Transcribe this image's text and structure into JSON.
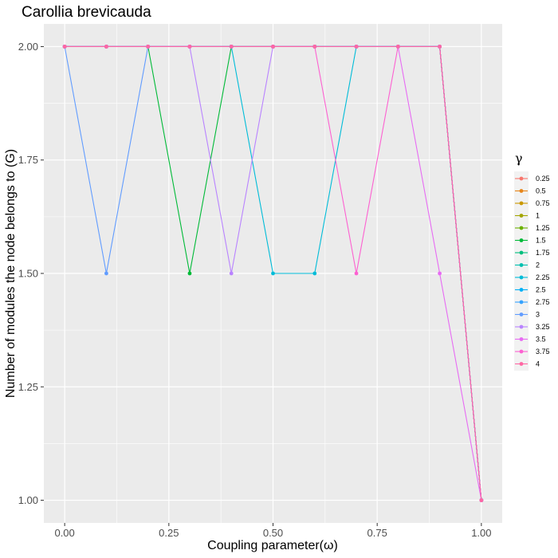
{
  "chart_data": {
    "type": "line",
    "title": "Carollia brevicauda",
    "xlabel": "Coupling parameter(ω)",
    "ylabel": "Number of modules the node belongs to (G)",
    "xlim": [
      -0.05,
      1.05
    ],
    "ylim": [
      0.95,
      2.05
    ],
    "x_ticks": [
      "0.00",
      "0.25",
      "0.50",
      "0.75",
      "1.00"
    ],
    "y_ticks": [
      "1.00",
      "1.25",
      "1.50",
      "1.75",
      "2.00"
    ],
    "grid": true,
    "legend_title": "γ",
    "legend_position": "right",
    "x": [
      0.0,
      0.1,
      0.2,
      0.3,
      0.4,
      0.5,
      0.6,
      0.7,
      0.8,
      0.9,
      1.0
    ],
    "series": [
      {
        "name": "0.25",
        "color": "#F8766D",
        "values": [
          2,
          2,
          2,
          2,
          2,
          2,
          2,
          2,
          2,
          2,
          1
        ]
      },
      {
        "name": "0.5",
        "color": "#E7861B",
        "values": [
          2,
          2,
          2,
          2,
          2,
          2,
          2,
          2,
          2,
          2,
          1
        ]
      },
      {
        "name": "0.75",
        "color": "#C99800",
        "values": [
          2,
          2,
          2,
          2,
          2,
          2,
          2,
          2,
          2,
          2,
          1
        ]
      },
      {
        "name": "1",
        "color": "#A3A500",
        "values": [
          2,
          2,
          2,
          2,
          2,
          2,
          2,
          2,
          2,
          2,
          1
        ]
      },
      {
        "name": "1.25",
        "color": "#6BB100",
        "values": [
          2,
          2,
          2,
          2,
          2,
          2,
          2,
          2,
          2,
          2,
          1
        ]
      },
      {
        "name": "1.5",
        "color": "#00BA38",
        "values": [
          2,
          2,
          2,
          1.5,
          2,
          2,
          2,
          2,
          2,
          2,
          1
        ]
      },
      {
        "name": "1.75",
        "color": "#00BF7D",
        "values": [
          2,
          2,
          2,
          2,
          2,
          2,
          2,
          2,
          2,
          2,
          1
        ]
      },
      {
        "name": "2",
        "color": "#00C0AF",
        "values": [
          2,
          2,
          2,
          2,
          2,
          2,
          2,
          2,
          2,
          2,
          1
        ]
      },
      {
        "name": "2.25",
        "color": "#00BCD8",
        "values": [
          2,
          2,
          2,
          2,
          2,
          1.5,
          1.5,
          2,
          2,
          2,
          1
        ]
      },
      {
        "name": "2.5",
        "color": "#00B0F6",
        "values": [
          2,
          2,
          2,
          2,
          2,
          2,
          2,
          2,
          2,
          2,
          1
        ]
      },
      {
        "name": "2.75",
        "color": "#35A2FF",
        "values": [
          2,
          2,
          2,
          2,
          2,
          2,
          2,
          2,
          2,
          2,
          1
        ]
      },
      {
        "name": "3",
        "color": "#619CFF",
        "values": [
          2,
          1.5,
          2,
          2,
          2,
          2,
          2,
          2,
          2,
          2,
          1
        ]
      },
      {
        "name": "3.25",
        "color": "#B983FF",
        "values": [
          2,
          2,
          2,
          2,
          1.5,
          2,
          2,
          2,
          2,
          2,
          1
        ]
      },
      {
        "name": "3.5",
        "color": "#E76BF3",
        "values": [
          2,
          2,
          2,
          2,
          2,
          2,
          2,
          2,
          2,
          1.5,
          1
        ]
      },
      {
        "name": "3.75",
        "color": "#FD61D1",
        "values": [
          2,
          2,
          2,
          2,
          2,
          2,
          2,
          1.5,
          2,
          2,
          1
        ]
      },
      {
        "name": "4",
        "color": "#FF67A4",
        "values": [
          2,
          2,
          2,
          2,
          2,
          2,
          2,
          2,
          2,
          2,
          1
        ]
      }
    ]
  }
}
